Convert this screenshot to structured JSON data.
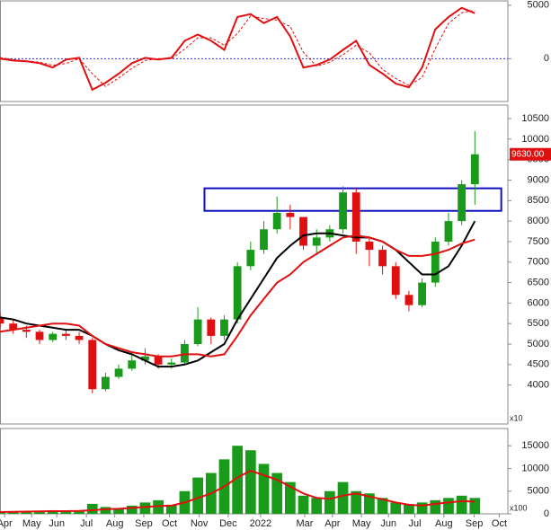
{
  "chart_data": [
    {
      "type": "line",
      "zero_line": true,
      "zero_color": "#2a2ad0",
      "x": [
        0,
        2,
        4,
        6,
        8,
        10,
        12,
        14,
        16,
        18,
        20,
        22,
        24,
        26,
        28,
        30,
        32,
        34,
        36,
        38,
        40,
        42,
        44,
        46,
        48,
        50,
        52,
        54,
        56,
        58,
        60,
        62,
        64,
        66,
        68,
        70,
        72
      ],
      "xlim": [
        0,
        77
      ],
      "ylim": [
        -4000,
        5400
      ],
      "yticks": [
        0,
        5000
      ],
      "series": [
        {
          "color": "#e01010",
          "dashed": false,
          "values": [
            0,
            -170,
            -250,
            -420,
            -830,
            -80,
            80,
            -2900,
            -2250,
            -1400,
            -420,
            80,
            -80,
            80,
            1670,
            2250,
            1670,
            830,
            3900,
            4170,
            3330,
            3900,
            2080,
            -830,
            -580,
            -80,
            830,
            1670,
            -580,
            -1400,
            -2330,
            -2670,
            -830,
            2750,
            3900,
            4750,
            4250
          ]
        },
        {
          "color": "#e01010",
          "dashed": true,
          "values": [
            100,
            -80,
            -200,
            -330,
            -620,
            -450,
            0,
            -1400,
            -2600,
            -1800,
            -900,
            -170,
            0,
            0,
            900,
            1950,
            1950,
            1250,
            2350,
            4000,
            3750,
            3600,
            3000,
            600,
            -700,
            -330,
            370,
            1250,
            550,
            -1000,
            -1850,
            -2500,
            -1750,
            950,
            3300,
            4300,
            4500
          ]
        }
      ]
    },
    {
      "type": "candlestick",
      "x": [
        0,
        2,
        4,
        6,
        8,
        10,
        12,
        14,
        16,
        18,
        20,
        22,
        24,
        26,
        28,
        30,
        32,
        34,
        36,
        38,
        40,
        42,
        44,
        46,
        48,
        50,
        52,
        54,
        56,
        58,
        60,
        62,
        64,
        66,
        68,
        70,
        72
      ],
      "xlim": [
        0,
        77
      ],
      "ylim": [
        3050,
        10830
      ],
      "yticks": [
        4000,
        4500,
        5000,
        5500,
        6000,
        6500,
        7000,
        7500,
        8000,
        8500,
        9000,
        9500,
        10000,
        10500
      ],
      "unit_label": "x10",
      "up_color": "#1a9a1a",
      "down_color": "#e01010",
      "open": [
        5650,
        5500,
        5350,
        5300,
        5100,
        5250,
        5200,
        5100,
        3900,
        4200,
        4400,
        4600,
        4700,
        4500,
        4550,
        5000,
        5600,
        5200,
        5600,
        6900,
        7300,
        7800,
        8200,
        8100,
        7400,
        7600,
        7800,
        8700,
        7500,
        7300,
        6900,
        6200,
        5950,
        6500,
        7500,
        8000,
        8900
      ],
      "high": [
        5750,
        5600,
        5450,
        5350,
        5300,
        5350,
        5300,
        5150,
        4300,
        4500,
        4800,
        4900,
        4750,
        4650,
        5100,
        5900,
        5650,
        5700,
        7000,
        7500,
        8000,
        8600,
        8400,
        8100,
        7800,
        7900,
        8850,
        8800,
        7600,
        7400,
        7000,
        6300,
        6600,
        7600,
        8200,
        9000,
        10200
      ],
      "low": [
        5400,
        5250,
        5150,
        5000,
        5050,
        5100,
        5000,
        3800,
        3850,
        4150,
        4350,
        4500,
        4400,
        4400,
        4500,
        4950,
        5000,
        5100,
        5500,
        6800,
        7200,
        7700,
        7800,
        7300,
        7200,
        7500,
        7700,
        7200,
        6900,
        6700,
        6100,
        5800,
        5900,
        6400,
        7400,
        7900,
        8400
      ],
      "close": [
        5500,
        5350,
        5300,
        5100,
        5250,
        5200,
        5100,
        3900,
        4200,
        4400,
        4600,
        4700,
        4500,
        4550,
        5000,
        5600,
        5200,
        5600,
        6900,
        7300,
        7800,
        8200,
        8100,
        7400,
        7600,
        7800,
        8700,
        7500,
        7300,
        6900,
        6200,
        5950,
        6500,
        7500,
        8000,
        8900,
        9630
      ],
      "last_label": {
        "value": 9630,
        "label": "9630.00"
      },
      "series": [
        {
          "color": "#000000",
          "values": [
            5650,
            5600,
            5500,
            5450,
            5400,
            5350,
            5350,
            5200,
            5000,
            4850,
            4750,
            4600,
            4450,
            4450,
            4500,
            4600,
            4800,
            5000,
            5600,
            6100,
            6600,
            7100,
            7400,
            7650,
            7700,
            7700,
            7650,
            7600,
            7600,
            7500,
            7300,
            7000,
            6700,
            6700,
            6900,
            7400,
            8000
          ]
        },
        {
          "color": "#e01010",
          "values": [
            5300,
            5350,
            5400,
            5450,
            5500,
            5500,
            5450,
            5200,
            5000,
            4900,
            4800,
            4750,
            4700,
            4700,
            4750,
            4750,
            4700,
            4750,
            5200,
            5700,
            6100,
            6500,
            6700,
            7000,
            7200,
            7400,
            7600,
            7650,
            7600,
            7500,
            7300,
            7150,
            7150,
            7200,
            7300,
            7450,
            7550
          ]
        }
      ],
      "highlight_zone": {
        "xlim": [
          31,
          76
        ],
        "ylim": [
          8250,
          8800
        ],
        "color": "#1010c0"
      }
    },
    {
      "type": "bar",
      "x": [
        0,
        2,
        4,
        6,
        8,
        10,
        12,
        14,
        16,
        18,
        20,
        22,
        24,
        26,
        28,
        30,
        32,
        34,
        36,
        38,
        40,
        42,
        44,
        46,
        48,
        50,
        52,
        54,
        56,
        58,
        60,
        62,
        64,
        66,
        68,
        70,
        72
      ],
      "xlim": [
        0,
        77
      ],
      "ylim": [
        0,
        18800
      ],
      "yticks": [
        0,
        5000,
        10000,
        15000
      ],
      "unit_label": "x100",
      "color": "#1a9a1a",
      "values": [
        500,
        600,
        400,
        700,
        800,
        500,
        600,
        2200,
        1500,
        1200,
        1800,
        2500,
        3000,
        2000,
        5000,
        8000,
        9000,
        12000,
        15000,
        14000,
        11000,
        9000,
        7000,
        4000,
        3500,
        5000,
        7000,
        5000,
        4500,
        3500,
        2500,
        2000,
        2500,
        3000,
        3500,
        4000,
        3500
      ],
      "series": [
        {
          "color": "#e01010",
          "values": [
            400,
            450,
            500,
            550,
            600,
            600,
            650,
            800,
            1000,
            1100,
            1300,
            1500,
            1700,
            1800,
            2500,
            3500,
            4500,
            6000,
            8000,
            9500,
            8500,
            7500,
            6000,
            4500,
            3500,
            3300,
            4000,
            4500,
            3800,
            3200,
            2500,
            2000,
            1800,
            2200,
            2500,
            2800,
            2700
          ]
        }
      ],
      "xticks": [
        {
          "value": 0.7,
          "label": "Apr"
        },
        {
          "value": 4.8,
          "label": "May"
        },
        {
          "value": 8.6,
          "label": "Jun"
        },
        {
          "value": 13.1,
          "label": "Jul"
        },
        {
          "value": 17.4,
          "label": "Aug"
        },
        {
          "value": 21.8,
          "label": "Sep"
        },
        {
          "value": 25.7,
          "label": "Oct"
        },
        {
          "value": 30.2,
          "label": "Nov"
        },
        {
          "value": 34.6,
          "label": "Dec"
        },
        {
          "value": 39.5,
          "label": "2022"
        },
        {
          "value": 46.2,
          "label": "Mar"
        },
        {
          "value": 50.4,
          "label": "Apr"
        },
        {
          "value": 54.8,
          "label": "May"
        },
        {
          "value": 58.9,
          "label": "Jun"
        },
        {
          "value": 62.9,
          "label": "Jul"
        },
        {
          "value": 67.3,
          "label": "Aug"
        },
        {
          "value": 71.9,
          "label": "Sep"
        },
        {
          "value": 75.7,
          "label": "Oct"
        }
      ]
    }
  ]
}
